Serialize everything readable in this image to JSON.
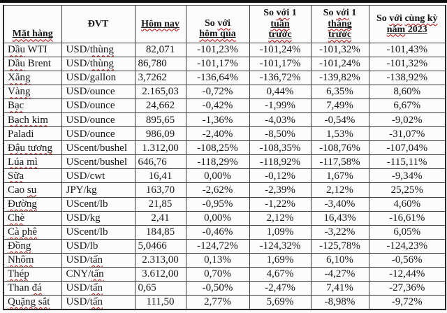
{
  "page": {
    "background": "#fcfcfc",
    "top_rule_color": "#0d0d0d",
    "border_color": "#3a3a3a",
    "text_color": "#161616",
    "squiggle_color": "#b30000"
  },
  "table": {
    "headers": [
      {
        "id": "mat-hang",
        "segments": [
          [
            "Mặt hàng",
            "us"
          ]
        ]
      },
      {
        "id": "dvt",
        "segments": [
          [
            "ĐVT",
            ""
          ]
        ]
      },
      {
        "id": "hom-nay",
        "segments": [
          [
            "Hôm nay",
            "us"
          ]
        ]
      },
      {
        "id": "so-voi-hom-qua",
        "segments": [
          [
            "So ",
            ""
          ],
          [
            "với",
            "s"
          ],
          [
            "hôm qua",
            "usb"
          ]
        ]
      },
      {
        "id": "so-voi-1-tuan-truoc",
        "segments": [
          [
            "So ",
            ""
          ],
          [
            "với",
            "s"
          ],
          [
            " 1",
            ""
          ],
          [
            "tuần",
            "usb"
          ],
          [
            "trước",
            "usb"
          ]
        ]
      },
      {
        "id": "so-voi-1-thang-truoc",
        "segments": [
          [
            "So ",
            ""
          ],
          [
            "với",
            "s"
          ],
          [
            " 1",
            ""
          ],
          [
            "tháng",
            "usb"
          ],
          [
            "trước",
            "usb"
          ]
        ]
      },
      {
        "id": "so-voi-cung-ky-nam-2023",
        "segments": [
          [
            "So ",
            ""
          ],
          [
            "với",
            "s"
          ],
          [
            " ",
            ""
          ],
          [
            "cùng kỳ",
            "s"
          ],
          [
            "năm",
            "usb"
          ],
          [
            " 2023",
            "u"
          ]
        ]
      }
    ],
    "rows": [
      {
        "name": [
          [
            "Dầu",
            "s"
          ],
          [
            " WTI",
            ""
          ]
        ],
        "unit": [
          [
            "USD/",
            ""
          ],
          [
            "thùng",
            "s"
          ]
        ],
        "today": "82,071",
        "vs_yesterday": "-101,23%",
        "vs_week": "-101,24%",
        "vs_month": "-101,32%",
        "vs_2023": "-101,43%"
      },
      {
        "name": [
          [
            "Dầu",
            "s"
          ],
          [
            " Brent",
            ""
          ]
        ],
        "unit": [
          [
            "USD/",
            ""
          ],
          [
            "thùng",
            "s"
          ]
        ],
        "today": "86,780",
        "today_align": "left",
        "vs_yesterday": "-101,17%",
        "vs_week": "-101,17%",
        "vs_month": "-101,24%",
        "vs_2023": "-101,32%"
      },
      {
        "name": [
          [
            "Xăng",
            "s"
          ]
        ],
        "unit": [
          [
            "USD/gallon",
            ""
          ]
        ],
        "today": "3,7262",
        "today_align": "left",
        "vs_yesterday": "-136,64%",
        "vs_week": "-136,72%",
        "vs_month": "-139,82%",
        "vs_2023": "-138,92%"
      },
      {
        "name": [
          [
            "Vàng",
            "s"
          ]
        ],
        "unit": [
          [
            "USD/ounce",
            ""
          ]
        ],
        "today": "2.165,03",
        "vs_yesterday": "-0,72%",
        "vs_week": "0,44%",
        "vs_month": "6,35%",
        "vs_2023": "8,60%"
      },
      {
        "name": [
          [
            "Bạc",
            "s"
          ]
        ],
        "unit": [
          [
            "USD/ounce",
            ""
          ]
        ],
        "today": "24,662",
        "vs_yesterday": "-0,42%",
        "vs_week": "-1,99%",
        "vs_month": "7,49%",
        "vs_2023": "6,67%"
      },
      {
        "name": [
          [
            "Bạch kim",
            "s"
          ]
        ],
        "unit": [
          [
            "USD/ounce",
            ""
          ]
        ],
        "today": "895,65",
        "vs_yesterday": "-1,36%",
        "vs_week": "-4,03%",
        "vs_month": "-0,54%",
        "vs_2023": "-9,02%"
      },
      {
        "name": [
          [
            "Paladi",
            ""
          ]
        ],
        "unit": [
          [
            "USD/ounce",
            ""
          ]
        ],
        "today": "986,09",
        "vs_yesterday": "-2,40%",
        "vs_week": "-8,50%",
        "vs_month": "1,53%",
        "vs_2023": "-31,07%"
      },
      {
        "name": [
          [
            "Đậu tương",
            "s"
          ]
        ],
        "unit": [
          [
            "UScent/bushel",
            ""
          ]
        ],
        "today": "1.312,00",
        "vs_yesterday": "-108,25%",
        "vs_week": "-108,35%",
        "vs_month": "-108,76%",
        "vs_2023": "-107,04%"
      },
      {
        "name": [
          [
            "Lúa mì",
            "s"
          ]
        ],
        "unit": [
          [
            "UScent/bushel",
            ""
          ]
        ],
        "today": "646,76",
        "today_align": "left",
        "vs_yesterday": "-118,29%",
        "vs_week": "-118,92%",
        "vs_month": "-117,58%",
        "vs_2023": "-115,11%"
      },
      {
        "name": [
          [
            "Sữa",
            "s"
          ]
        ],
        "unit": [
          [
            "USD/cwt",
            ""
          ]
        ],
        "today": "16,41",
        "vs_yesterday": "0,00%",
        "vs_week": "-0,12%",
        "vs_month": "1,67%",
        "vs_2023": "-9,34%"
      },
      {
        "name": [
          [
            "Cao ",
            ""
          ],
          [
            "su",
            "s"
          ]
        ],
        "unit": [
          [
            "JPY/kg",
            ""
          ]
        ],
        "today": "163,70",
        "vs_yesterday": "-2,62%",
        "vs_week": "-2,39%",
        "vs_month": "2,12%",
        "vs_2023": "25,25%"
      },
      {
        "name": [
          [
            "Đường",
            "s"
          ]
        ],
        "unit": [
          [
            "UScent/lb",
            ""
          ]
        ],
        "today": "21,85",
        "vs_yesterday": "-0,95%",
        "vs_week": "-1,22%",
        "vs_month": "-3,40%",
        "vs_2023": "4,60%"
      },
      {
        "name": [
          [
            "Chè",
            "s"
          ]
        ],
        "unit": [
          [
            "USD/kg",
            ""
          ]
        ],
        "today": "2,41",
        "vs_yesterday": "0,00%",
        "vs_week": "2,12%",
        "vs_month": "16,43%",
        "vs_2023": "-16,61%"
      },
      {
        "name": [
          [
            "Cà phê",
            "s"
          ]
        ],
        "unit": [
          [
            "UScent/lb",
            ""
          ]
        ],
        "today": "184,85",
        "vs_yesterday": "-0,46%",
        "vs_week": "1,09%",
        "vs_month": "-3,22%",
        "vs_2023": "6,05%"
      },
      {
        "name": [
          [
            "Đồng",
            "s"
          ]
        ],
        "unit": [
          [
            "USD/lb",
            ""
          ]
        ],
        "today": "5,0466",
        "today_align": "left",
        "vs_yesterday": "-124,72%",
        "vs_week": "-124,32%",
        "vs_month": "-125,78%",
        "vs_2023": "-124,23%"
      },
      {
        "name": [
          [
            "Nhôm",
            "s"
          ]
        ],
        "unit": [
          [
            "USD/",
            ""
          ],
          [
            "tấn",
            "s"
          ]
        ],
        "today": "2.313,00",
        "vs_yesterday": "0,13%",
        "vs_week": "1,69%",
        "vs_month": "6,10%",
        "vs_2023": "-0,56%"
      },
      {
        "name": [
          [
            "Thép",
            "s"
          ]
        ],
        "unit": [
          [
            "CNY/",
            ""
          ],
          [
            "tấn",
            "s"
          ]
        ],
        "today": "3.612,00",
        "vs_yesterday": "0,70%",
        "vs_week": "4,67%",
        "vs_month": "-4,27%",
        "vs_2023": "-12,44%"
      },
      {
        "name": [
          [
            "Than ",
            ""
          ],
          [
            "đá",
            "s"
          ]
        ],
        "unit": [
          [
            "USD/",
            ""
          ],
          [
            "tấn",
            "s"
          ]
        ],
        "today": "0,65",
        "today_align": "left",
        "vs_yesterday": "-0,50%",
        "vs_week": "-2,47%",
        "vs_month": "7,41%",
        "vs_2023": "-27,36%"
      },
      {
        "name": [
          [
            "Quặng sắt",
            "s"
          ]
        ],
        "unit": [
          [
            "USD/",
            ""
          ],
          [
            "tấn",
            "s"
          ]
        ],
        "today": "111,50",
        "vs_yesterday": "2,77%",
        "vs_week": "5,69%",
        "vs_month": "-8,98%",
        "vs_2023": "-9,72%"
      }
    ]
  }
}
